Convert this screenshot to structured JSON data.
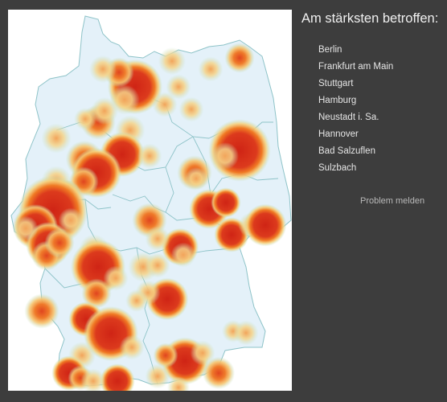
{
  "sidebar": {
    "title": "Am stärksten betroffen:",
    "cities": [
      "Berlin",
      "Frankfurt am Main",
      "Stuttgart",
      "Hamburg",
      "Neustadt i. Sa.",
      "Hannover",
      "Bad Salzuflen",
      "Sulzbach"
    ],
    "report_link": "Problem melden"
  },
  "map": {
    "colors": {
      "land": "#e4f1f9",
      "border": "#8ec3c8",
      "hot": "#d12a1a",
      "warm": "#f07a24",
      "cool": "#f3cf6a",
      "halo": "#bfe1bd"
    }
  }
}
